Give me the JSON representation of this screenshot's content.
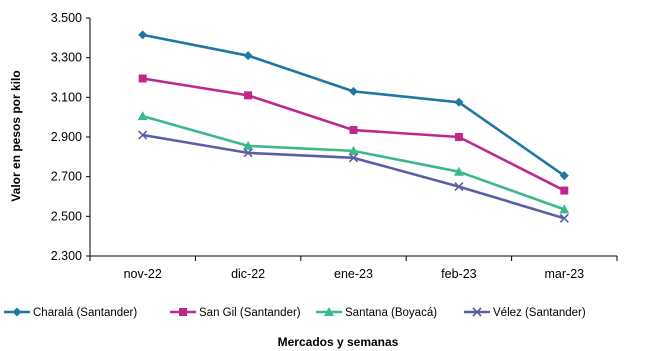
{
  "chart_data": {
    "type": "line",
    "categories": [
      "nov-22",
      "dic-22",
      "ene-23",
      "feb-23",
      "mar-23"
    ],
    "xlabel": "Mercados y semanas",
    "ylabel": "Valor en pesos  por kilo",
    "ylim": [
      2300,
      3500
    ],
    "y_ticks": [
      2300,
      2500,
      2700,
      2900,
      3100,
      3300,
      3500
    ],
    "y_tick_labels": [
      "2.300",
      "2.500",
      "2.700",
      "2.900",
      "3.100",
      "3.300",
      "3.500"
    ],
    "grid": false,
    "legend_position": "bottom",
    "series": [
      {
        "name": "Charalá (Santander)",
        "values": [
          3415,
          3310,
          3130,
          3075,
          2705
        ],
        "color": "#1f77a4",
        "marker": "diamond"
      },
      {
        "name": "San Gil (Santander)",
        "values": [
          3195,
          3110,
          2935,
          2900,
          2630
        ],
        "color": "#c0278a",
        "marker": "square"
      },
      {
        "name": "Santana (Boyacá)",
        "values": [
          3005,
          2855,
          2830,
          2725,
          2535
        ],
        "color": "#3cb88a",
        "marker": "triangle"
      },
      {
        "name": "Vélez (Santander)",
        "values": [
          2910,
          2820,
          2795,
          2650,
          2490
        ],
        "color": "#5b5ea6",
        "marker": "x"
      }
    ]
  }
}
